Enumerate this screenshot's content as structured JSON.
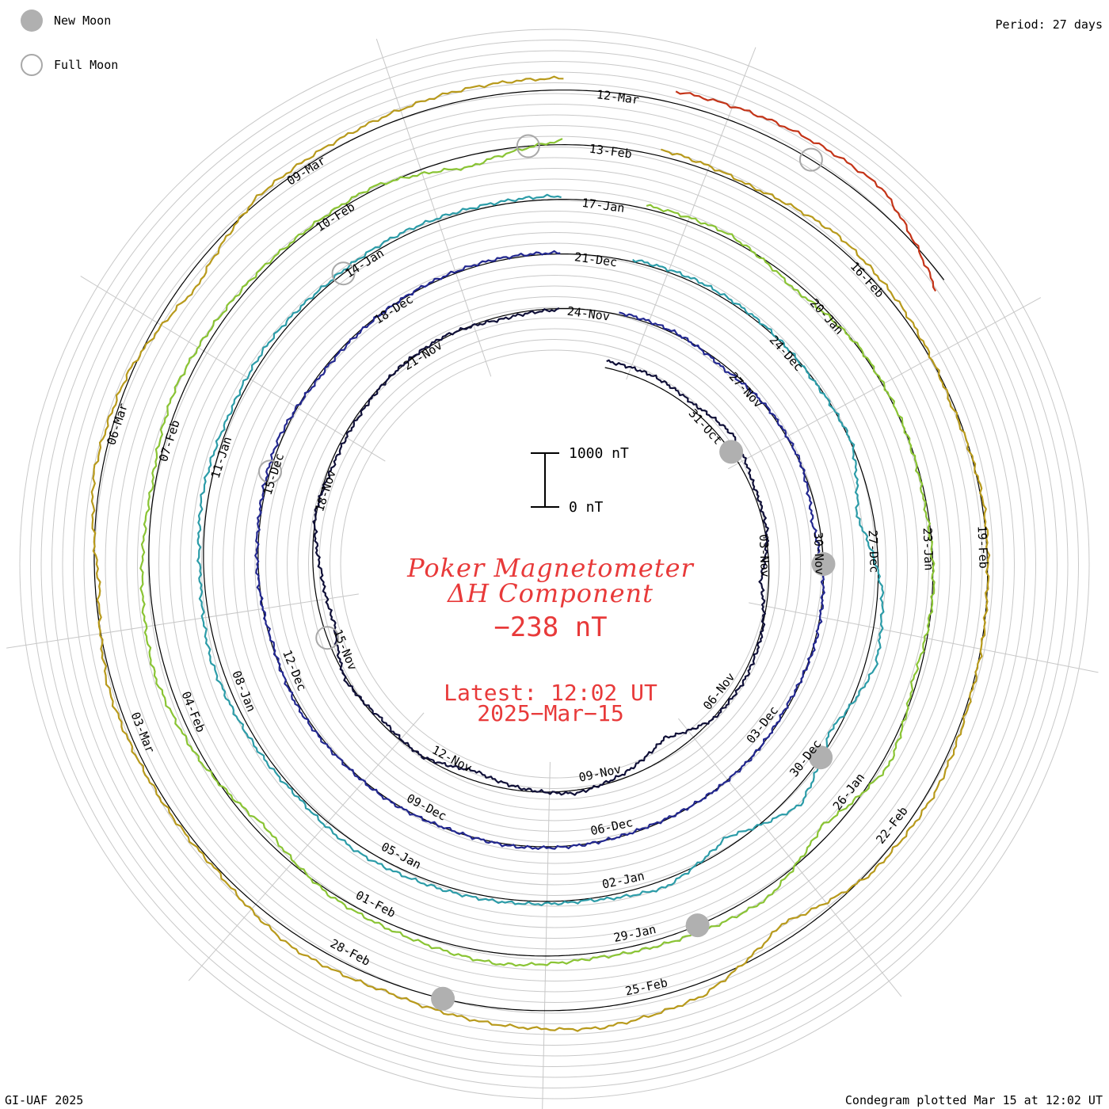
{
  "legend": {
    "new_moon_label": "New Moon",
    "full_moon_label": "Full Moon",
    "new_moon_color": "#b0b0b0",
    "full_moon_color": "#a8a8a8"
  },
  "period_label": "Period: 27 days",
  "credit": "GI-UAF 2025",
  "plotted_label": "Condegram plotted Mar 15 at 12:02 UT",
  "title_line1": "Poker Magnetometer",
  "title_line2": "ΔH Component",
  "current_value": "−238 nT",
  "latest_label": "Latest: 12:02 UT",
  "latest_date": "2025−Mar−15",
  "scale_bar": {
    "top_label": "1000 nT",
    "bottom_label": "0 nT"
  },
  "accent_color": "#e83a3a",
  "chart_data": {
    "type": "line",
    "subtype": "condegram-spiral",
    "period_days": 27,
    "grid": true,
    "series": [
      {
        "start": "2024-10-28",
        "end": "2024-11-24",
        "color": "#101038",
        "tick_labels": [
          "31-Oct",
          "03-Nov",
          "06-Nov",
          "09-Nov",
          "12-Nov",
          "15-Nov",
          "18-Nov",
          "21-Nov",
          "24-Nov"
        ],
        "values_nT": [
          120,
          140,
          90,
          210,
          60,
          40,
          -150,
          30,
          70,
          20,
          -320,
          -90,
          60,
          -40,
          -180,
          10,
          -60,
          40,
          -210,
          -150,
          20,
          -60,
          -40,
          10,
          30,
          -60,
          -20
        ]
      },
      {
        "start": "2024-11-24",
        "end": "2024-12-21",
        "color": "#232890",
        "tick_labels": [
          "27-Nov",
          "30-Nov",
          "03-Dec",
          "06-Dec",
          "09-Dec",
          "12-Dec",
          "15-Dec",
          "18-Dec",
          "21-Dec"
        ],
        "values_nT": [
          40,
          30,
          -60,
          20,
          10,
          -120,
          0,
          20,
          -30,
          10,
          0,
          -20,
          10,
          30,
          -10,
          20,
          10,
          40,
          -20,
          20,
          30,
          60,
          -40,
          -20,
          20,
          40,
          20
        ]
      },
      {
        "start": "2024-12-21",
        "end": "2025-01-17",
        "color": "#2c9ca8",
        "tick_labels": [
          "24-Dec",
          "27-Dec",
          "30-Dec",
          "02-Jan",
          "05-Jan",
          "08-Jan",
          "11-Jan",
          "14-Jan",
          "17-Jan"
        ],
        "values_nT": [
          40,
          60,
          30,
          -20,
          20,
          -300,
          80,
          200,
          -120,
          260,
          -180,
          140,
          30,
          60,
          80,
          120,
          40,
          90,
          150,
          70,
          120,
          60,
          90,
          40,
          70,
          50,
          60
        ]
      },
      {
        "start": "2025-01-17",
        "end": "2025-02-13",
        "color": "#8ac434",
        "tick_labels": [
          "20-Jan",
          "23-Jan",
          "26-Jan",
          "29-Jan",
          "01-Feb",
          "04-Feb",
          "07-Feb",
          "10-Feb",
          "13-Feb"
        ],
        "values_nT": [
          60,
          80,
          -120,
          20,
          10,
          -40,
          20,
          -80,
          140,
          -200,
          180,
          120,
          90,
          200,
          110,
          60,
          -160,
          80,
          220,
          140,
          50,
          160,
          90,
          40,
          60,
          -220,
          80
        ]
      },
      {
        "start": "2025-02-13",
        "end": "2025-03-12",
        "color": "#b89a1c",
        "tick_labels": [
          "16-Feb",
          "19-Feb",
          "22-Feb",
          "25-Feb",
          "28-Feb",
          "03-Mar",
          "06-Mar",
          "09-Mar",
          "12-Mar"
        ],
        "values_nT": [
          120,
          40,
          160,
          80,
          -40,
          30,
          0,
          20,
          120,
          60,
          -300,
          240,
          380,
          300,
          180,
          240,
          40,
          60,
          100,
          -80,
          140,
          60,
          -260,
          80,
          120,
          200,
          220
        ]
      },
      {
        "start": "2025-03-12",
        "end": "2025-03-15",
        "color": "#c43418",
        "tick_labels": [],
        "values_nT": [
          220,
          300,
          340,
          -238
        ]
      }
    ]
  }
}
